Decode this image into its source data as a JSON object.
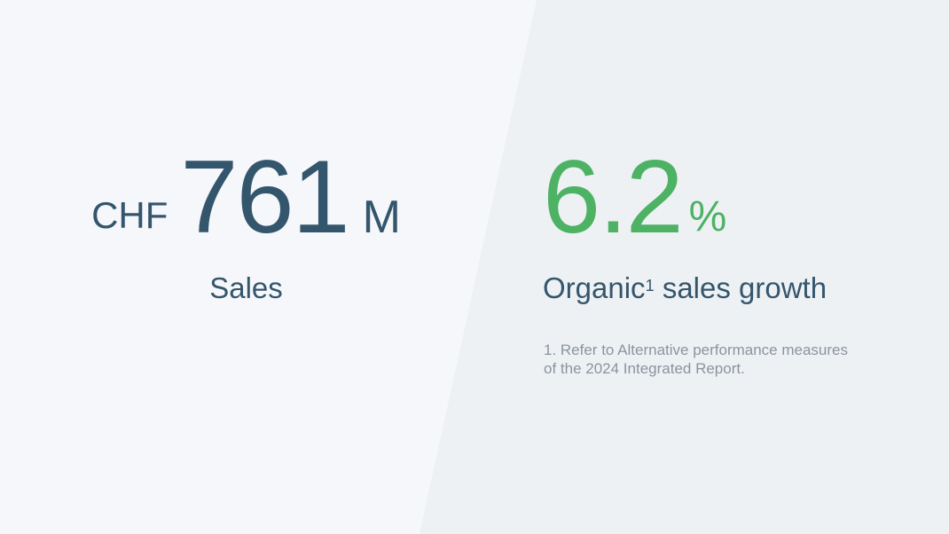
{
  "colors": {
    "bg-left": "#f6f7fb",
    "bg-right": "#eef1f4",
    "primary-dark": "#34566d",
    "accent-green": "#4db264",
    "footnote-gray": "#8b93a1"
  },
  "left_stat": {
    "currency": "CHF",
    "value": "761",
    "unit": "M",
    "label": "Sales"
  },
  "right_stat": {
    "value": "6.2",
    "unit": "%",
    "label_prefix": "Organic",
    "label_superscript": "1",
    "label_suffix": " sales growth"
  },
  "footnote": {
    "text": "1. Refer to Alternative performance measures of the 2024 Integrated Report."
  }
}
